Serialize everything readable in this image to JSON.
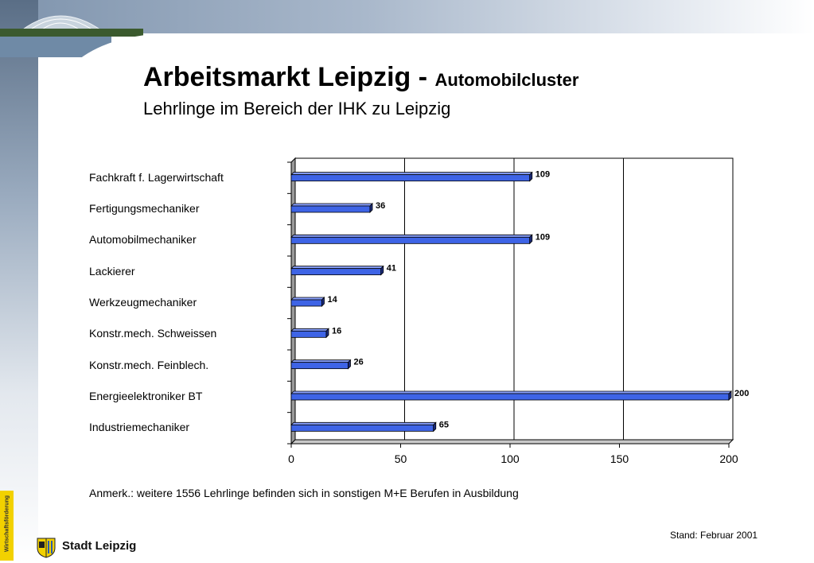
{
  "header": {
    "title": "Arbeitsmarkt Leipzig - ",
    "title_sub": "Automobilcluster",
    "subtitle": "Lehrlinge im Bereich der IHK zu Leipzig"
  },
  "colors": {
    "bar": "#3e64e6",
    "bar_dark": "#1c2d80",
    "bar_light": "#8aa2ff"
  },
  "chart_data": {
    "type": "bar",
    "orientation": "horizontal",
    "categories": [
      "Fachkraft f. Lagerwirtschaft",
      "Fertigungsmechaniker",
      "Automobilmechaniker",
      "Lackierer",
      "Werkzeugmechaniker",
      "Konstr.mech. Schweissen",
      "Konstr.mech. Feinblech.",
      "Energieelektroniker BT",
      "Industriemechaniker"
    ],
    "values": [
      109,
      36,
      109,
      41,
      14,
      16,
      26,
      200,
      65
    ],
    "xlim": [
      0,
      200
    ],
    "xticks": [
      0,
      50,
      100,
      150,
      200
    ],
    "grid": true,
    "legend": "none"
  },
  "footer": {
    "note": "Anmerk.: weitere 1556 Lehrlinge befinden sich in sonstigen M+E Berufen  in Ausbildung",
    "stand": "Stand: Februar 2001",
    "logo": "Stadt Leipzig",
    "side_tab": "Wirtschaftsförderung"
  }
}
